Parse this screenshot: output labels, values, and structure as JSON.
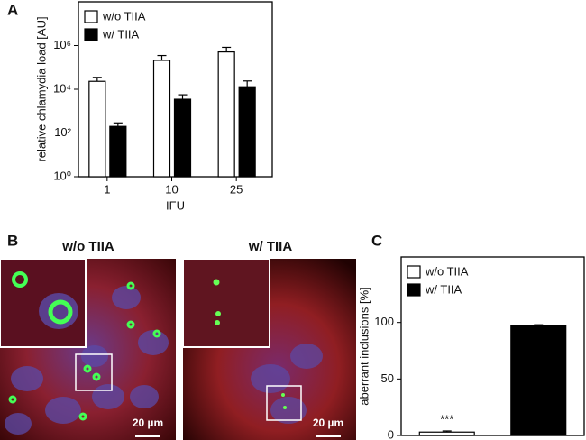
{
  "chart_data": [
    {
      "type": "bar",
      "panel_label": "A",
      "y_label": "relative chlamydia load [AU]",
      "x_label": "IFU",
      "categories": [
        "1",
        "10",
        "25"
      ],
      "log_scale": true,
      "ylim": [
        1,
        100000000
      ],
      "yticks": [
        {
          "value": 1,
          "label": "10⁰"
        },
        {
          "value": 100,
          "label": "10²"
        },
        {
          "value": 10000,
          "label": "10⁴"
        },
        {
          "value": 1000000,
          "label": "10⁶"
        }
      ],
      "legend": "upper left",
      "series": [
        {
          "name": "w/o TIIA",
          "color": "#ffffff",
          "values": [
            23000,
            210000,
            510000
          ],
          "errors": [
            12000,
            140000,
            320000
          ]
        },
        {
          "name": "w/ TIIA",
          "color": "#000000",
          "values": [
            200,
            3500,
            13000
          ],
          "errors": [
            90,
            2100,
            11000
          ]
        }
      ]
    },
    {
      "type": "bar",
      "panel_label": "C",
      "y_label": "aberrant inclusions [%]",
      "ylim": [
        0,
        158
      ],
      "yticks": [
        0,
        50,
        100
      ],
      "legend": "upper left",
      "annotations": [
        {
          "text": "***",
          "series": 0
        }
      ],
      "series": [
        {
          "name": "w/o TIIA",
          "color": "#ffffff",
          "values": [
            3
          ],
          "errors": [
            1
          ]
        },
        {
          "name": "w/ TIIA",
          "color": "#000000",
          "values": [
            97
          ],
          "errors": [
            1
          ]
        }
      ]
    }
  ],
  "images": {
    "panel_label": "B",
    "items": [
      {
        "title": "w/o TIIA",
        "scale_bar": "20 µm"
      },
      {
        "title": "w/ TIIA",
        "scale_bar": "20 µm"
      }
    ]
  }
}
